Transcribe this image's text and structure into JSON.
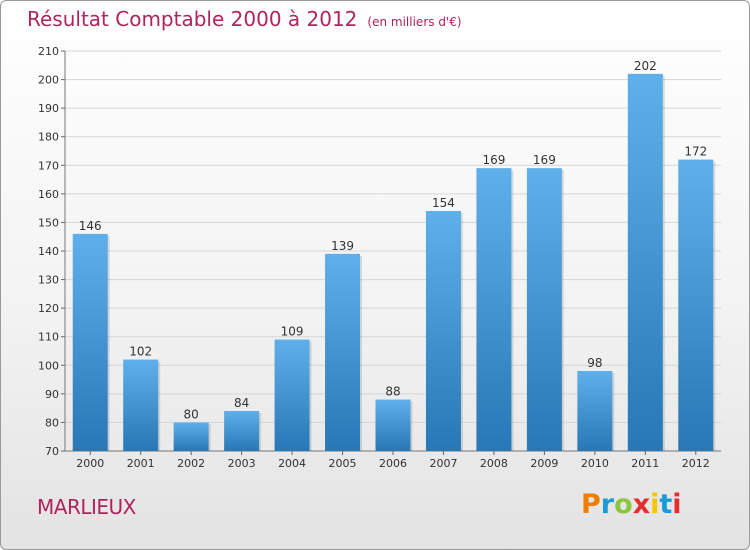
{
  "chart_data": {
    "type": "bar",
    "title": "Résultat Comptable 2000 à 2012",
    "subtitle": "(en milliers d'€)",
    "xlabel": "",
    "ylabel": "",
    "categories": [
      "2000",
      "2001",
      "2002",
      "2003",
      "2004",
      "2005",
      "2006",
      "2007",
      "2008",
      "2009",
      "2010",
      "2011",
      "2012"
    ],
    "values": [
      146,
      102,
      80,
      84,
      109,
      139,
      88,
      154,
      169,
      169,
      98,
      202,
      172
    ],
    "ylim": [
      70,
      210
    ],
    "yticks": [
      70,
      80,
      90,
      100,
      110,
      120,
      130,
      140,
      150,
      160,
      170,
      180,
      190,
      200,
      210
    ],
    "grid": true,
    "colors": {
      "bar_top": "#5fb0ea",
      "bar_bottom": "#2877b6",
      "title": "#b0245c",
      "grid": "#d6d6d6"
    }
  },
  "commune": "MARLIEUX",
  "logo": {
    "letters": [
      "P",
      "r",
      "o",
      "x",
      "i",
      "t",
      "i"
    ],
    "colors": [
      "#f07c00",
      "#1c9ad6",
      "#8cc63e",
      "#e52d2d",
      "#f7c600",
      "#1c9ad6",
      "#e52d2d"
    ]
  }
}
